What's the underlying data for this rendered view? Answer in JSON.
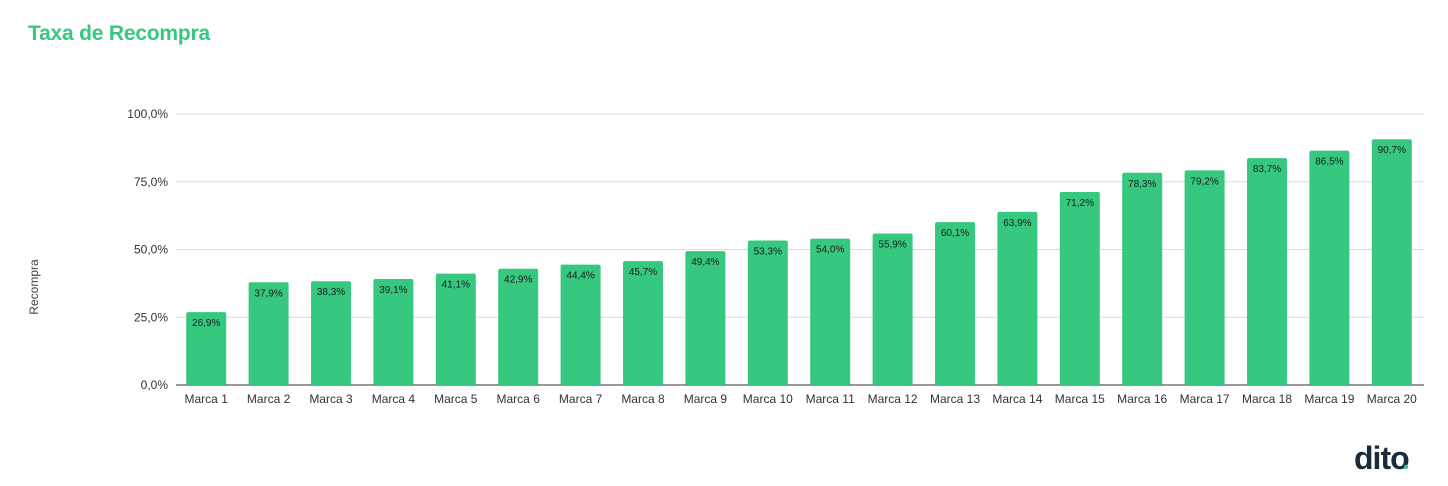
{
  "title": "Taxa de Recompra",
  "logo_text": "dito",
  "colors": {
    "title": "#37c880",
    "bar": "#37c880",
    "logo": "#1c2b3a",
    "logo_dot": "#37c880",
    "grid": "#dcdcdc",
    "text": "#333333"
  },
  "chart_data": {
    "type": "bar",
    "title": "Taxa de Recompra",
    "xlabel": "",
    "ylabel": "Recompra",
    "ylim": [
      0,
      100
    ],
    "yticks": [
      0,
      25,
      50,
      75,
      100
    ],
    "ytick_labels": [
      "0,0%",
      "25,0%",
      "50,0%",
      "75,0%",
      "100,0%"
    ],
    "grid": true,
    "categories": [
      "Marca 1",
      "Marca 2",
      "Marca 3",
      "Marca 4",
      "Marca 5",
      "Marca 6",
      "Marca 7",
      "Marca 8",
      "Marca 9",
      "Marca 10",
      "Marca 11",
      "Marca 12",
      "Marca 13",
      "Marca 14",
      "Marca 15",
      "Marca 16",
      "Marca 17",
      "Marca 18",
      "Marca 19",
      "Marca 20"
    ],
    "values": [
      26.9,
      37.9,
      38.3,
      39.1,
      41.1,
      42.9,
      44.4,
      45.7,
      49.4,
      53.3,
      54.0,
      55.9,
      60.1,
      63.9,
      71.2,
      78.3,
      79.2,
      83.7,
      86.5,
      90.7
    ],
    "value_labels": [
      "26,9%",
      "37,9%",
      "38,3%",
      "39,1%",
      "41,1%",
      "42,9%",
      "44,4%",
      "45,7%",
      "49,4%",
      "53,3%",
      "54,0%",
      "55,9%",
      "60,1%",
      "63,9%",
      "71,2%",
      "78,3%",
      "79,2%",
      "83,7%",
      "86,5%",
      "90,7%"
    ]
  }
}
